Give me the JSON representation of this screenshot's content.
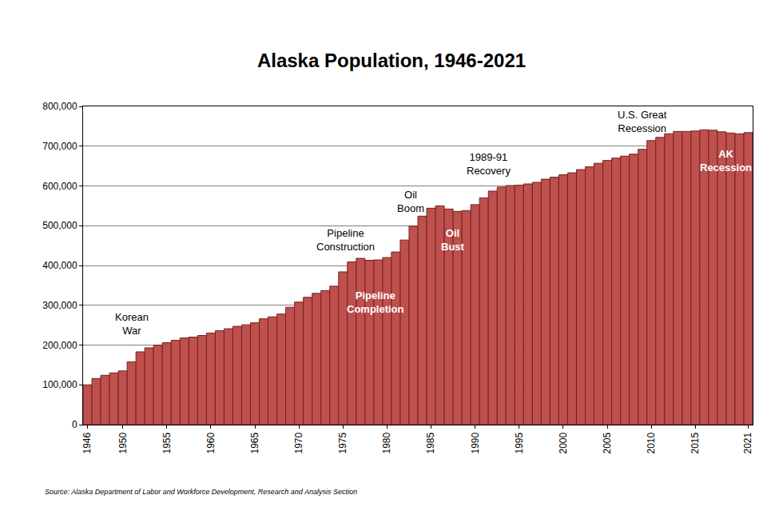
{
  "chart_data": {
    "type": "bar",
    "title": "Alaska Population, 1946-2021",
    "source": "Source: Alaska Department of Labor and Workforce Development, Research and Analysis Section",
    "categories": [
      "1946",
      null,
      null,
      null,
      "1950",
      null,
      null,
      null,
      null,
      "1955",
      null,
      null,
      null,
      null,
      "1960",
      null,
      null,
      null,
      null,
      "1965",
      null,
      null,
      null,
      null,
      "1970",
      null,
      null,
      null,
      null,
      "1975",
      null,
      null,
      null,
      null,
      "1980",
      null,
      null,
      null,
      null,
      "1985",
      null,
      null,
      null,
      null,
      "1990",
      null,
      null,
      null,
      null,
      "1995",
      null,
      null,
      null,
      null,
      "2000",
      null,
      null,
      null,
      null,
      "2005",
      null,
      null,
      null,
      null,
      "2010",
      null,
      null,
      null,
      null,
      "2015",
      null,
      null,
      null,
      null,
      null,
      "2021"
    ],
    "values": [
      100000,
      116000,
      124000,
      130000,
      135000,
      158000,
      183000,
      193000,
      200000,
      206000,
      212000,
      218000,
      220000,
      224000,
      230000,
      236000,
      241000,
      247000,
      251000,
      256000,
      266000,
      271000,
      278000,
      295000,
      308000,
      320000,
      330000,
      337000,
      348000,
      384000,
      409000,
      418000,
      413000,
      414000,
      420000,
      434000,
      464000,
      499000,
      524000,
      544000,
      550000,
      542000,
      536000,
      538000,
      553000,
      570000,
      587000,
      597000,
      601000,
      602000,
      605000,
      609000,
      617000,
      622000,
      628000,
      633000,
      641000,
      648000,
      657000,
      664000,
      670000,
      675000,
      680000,
      692000,
      714000,
      722000,
      731000,
      737000,
      737000,
      738000,
      741000,
      740000,
      736000,
      733000,
      731000,
      734000
    ],
    "color": "#c0504d",
    "ylim": [
      0,
      800000
    ],
    "yticks": [
      0,
      {
        "value": 100000,
        "label": "100,000"
      },
      {
        "value": 200000,
        "label": "200,000"
      },
      {
        "value": 300000,
        "label": "300,000"
      },
      {
        "value": 400000,
        "label": "400,000"
      },
      {
        "value": 500000,
        "label": "500,000"
      },
      {
        "value": 600000,
        "label": "600,000"
      },
      {
        "value": 700000,
        "label": "700,000"
      },
      {
        "value": 800000,
        "label": "800,000"
      }
    ],
    "grid": true,
    "annotations": [
      "Korean\nWar",
      "Pipeline\nConstruction",
      "Pipeline\nCompletion",
      "Oil\nBoom",
      "Oil\nBust",
      "1989-91\nRecovery",
      "U.S. Great\nRecession",
      "AK\nRecession"
    ]
  }
}
